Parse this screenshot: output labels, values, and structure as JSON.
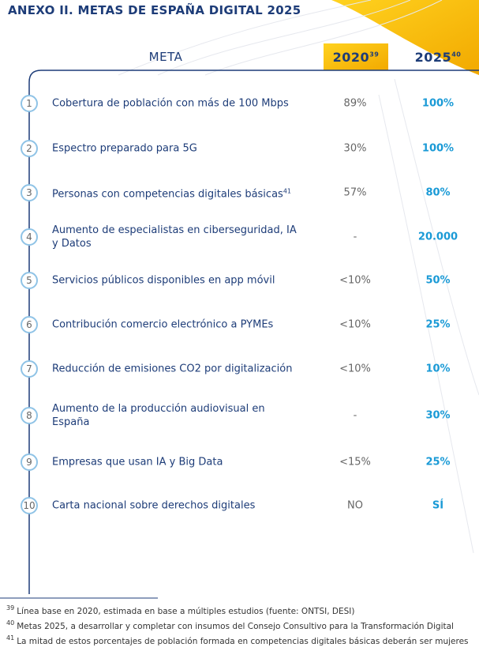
{
  "header": {
    "title": "ANEXO II. METAS DE ESPAÑA DIGITAL 2025"
  },
  "table": {
    "columns": [
      {
        "label": "META"
      },
      {
        "label": "2020",
        "note": "39"
      },
      {
        "label": "2025",
        "note": "40"
      }
    ],
    "rows": [
      {
        "number": "1",
        "text": "Cobertura de población con más de 100 Mbps",
        "y2020": "89%",
        "y2025": "100%"
      },
      {
        "number": "2",
        "text": "Espectro preparado para 5G",
        "y2020": "30%",
        "y2025": "100%"
      },
      {
        "number": "3",
        "text": "Personas con competencias digitales básicas",
        "note": "41",
        "y2020": "57%",
        "y2025": "80%"
      },
      {
        "number": "4",
        "text": "Aumento de especialistas en ciberseguridad, IA  y Datos",
        "y2020": "-",
        "y2025": "20.000"
      },
      {
        "number": "5",
        "text": "Servicios públicos disponibles en app móvil",
        "y2020": "<10%",
        "y2025": "50%"
      },
      {
        "number": "6",
        "text": "Contribución comercio electrónico a PYMEs",
        "y2020": "<10%",
        "y2025": "25%"
      },
      {
        "number": "7",
        "text": "Reducción de emisiones CO2 por digitalización",
        "y2020": "<10%",
        "y2025": "10%"
      },
      {
        "number": "8",
        "text": "Aumento de la producción audiovisual en España",
        "y2020": "-",
        "y2025": "30%"
      },
      {
        "number": "9",
        "text": "Empresas que usan IA y Big Data",
        "y2020": "<15%",
        "y2025": "25%"
      },
      {
        "number": "10",
        "text": "Carta nacional sobre derechos digitales",
        "y2020": "NO",
        "y2025": "SÍ"
      }
    ]
  },
  "footnotes": [
    {
      "number": "39",
      "text": "Línea base en 2020, estimada en base a múltiples estudios (fuente: ONTSI, DESI)"
    },
    {
      "number": "40",
      "text": "Metas 2025, a desarrollar y completar con insumos del Consejo Consultivo para la Transformación Digital"
    },
    {
      "number": "41",
      "text": "La mitad de estos porcentajes de población formada en competencias digitales básicas deberán ser mujeres"
    }
  ]
}
